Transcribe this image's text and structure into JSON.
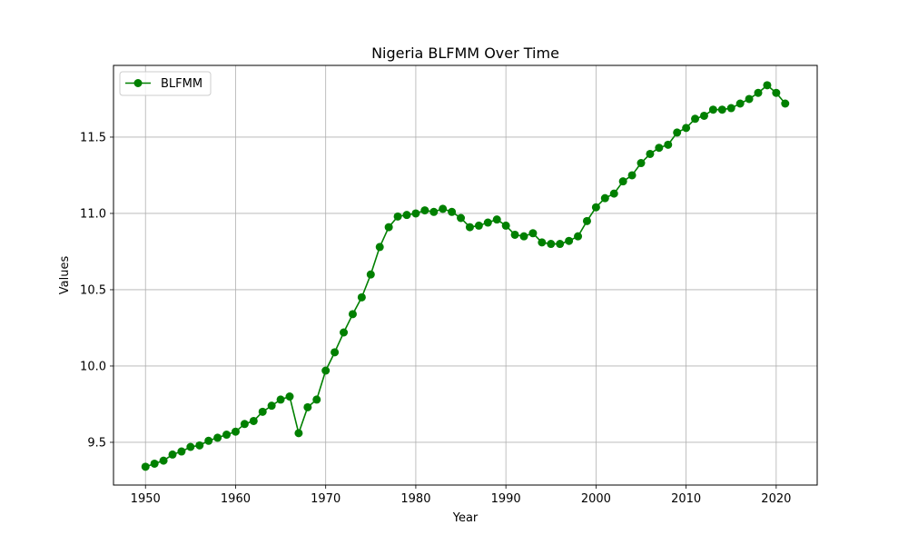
{
  "chart_data": {
    "type": "line",
    "title": "Nigeria BLFMM Over Time",
    "xlabel": "Year",
    "ylabel": "Values",
    "xlim": [
      1946.45,
      2024.55
    ],
    "ylim": [
      9.22,
      11.97
    ],
    "xticks": [
      1950,
      1960,
      1970,
      1980,
      1990,
      2000,
      2010,
      2020
    ],
    "xtick_labels": [
      "1950",
      "1960",
      "1970",
      "1980",
      "1990",
      "2000",
      "2010",
      "2020"
    ],
    "yticks": [
      9.5,
      10.0,
      10.5,
      11.0,
      11.5
    ],
    "ytick_labels": [
      "9.5",
      "10.0",
      "10.5",
      "11.0",
      "11.5"
    ],
    "grid": true,
    "legend_position": "top-left",
    "series": [
      {
        "name": "BLFMM",
        "color": "#008000",
        "marker": "circle",
        "x": [
          1950,
          1951,
          1952,
          1953,
          1954,
          1955,
          1956,
          1957,
          1958,
          1959,
          1960,
          1961,
          1962,
          1963,
          1964,
          1965,
          1966,
          1967,
          1968,
          1969,
          1970,
          1971,
          1972,
          1973,
          1974,
          1975,
          1976,
          1977,
          1978,
          1979,
          1980,
          1981,
          1982,
          1983,
          1984,
          1985,
          1986,
          1987,
          1988,
          1989,
          1990,
          1991,
          1992,
          1993,
          1994,
          1995,
          1996,
          1997,
          1998,
          1999,
          2000,
          2001,
          2002,
          2003,
          2004,
          2005,
          2006,
          2007,
          2008,
          2009,
          2010,
          2011,
          2012,
          2013,
          2014,
          2015,
          2016,
          2017,
          2018,
          2019,
          2020,
          2021
        ],
        "values": [
          9.34,
          9.36,
          9.38,
          9.42,
          9.44,
          9.47,
          9.48,
          9.51,
          9.53,
          9.55,
          9.57,
          9.62,
          9.64,
          9.7,
          9.74,
          9.78,
          9.8,
          9.56,
          9.73,
          9.78,
          9.97,
          10.09,
          10.22,
          10.34,
          10.45,
          10.6,
          10.78,
          10.91,
          10.98,
          10.99,
          11.0,
          11.02,
          11.01,
          11.03,
          11.01,
          10.97,
          10.91,
          10.92,
          10.94,
          10.96,
          10.92,
          10.86,
          10.85,
          10.87,
          10.81,
          10.8,
          10.8,
          10.82,
          10.85,
          10.95,
          11.04,
          11.1,
          11.13,
          11.21,
          11.25,
          11.33,
          11.39,
          11.43,
          11.45,
          11.53,
          11.56,
          11.62,
          11.64,
          11.68,
          11.68,
          11.69,
          11.72,
          11.75,
          11.79,
          11.84,
          11.79,
          11.72
        ]
      }
    ]
  }
}
